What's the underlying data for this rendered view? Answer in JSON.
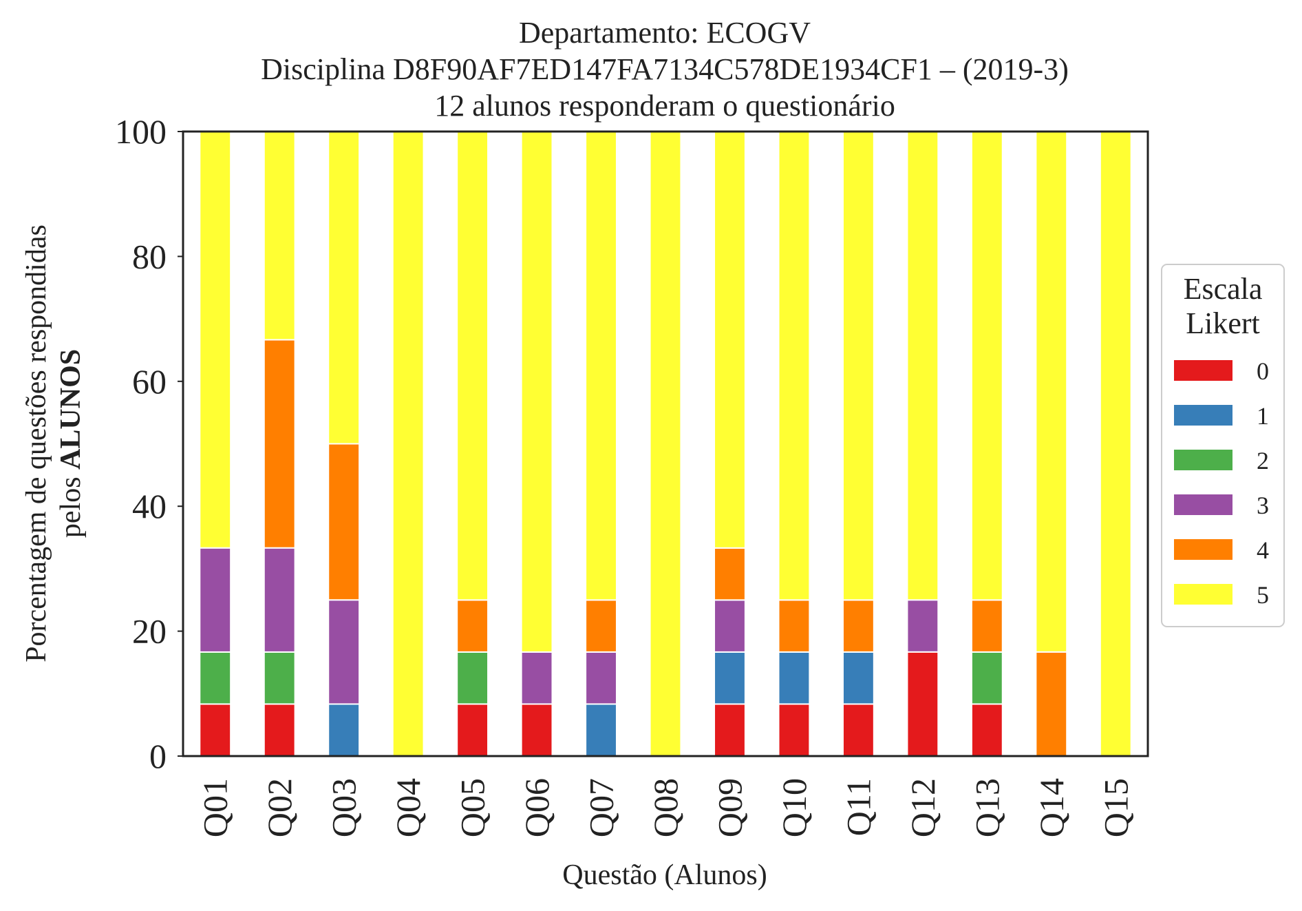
{
  "chart_data": {
    "type": "bar",
    "stacked": true,
    "title_lines": [
      "Departamento: ECOGV",
      "Disciplina D8F90AF7ED147FA7134C578DE1934CF1 – (2019-3)",
      "12 alunos responderam o questionário"
    ],
    "xlabel": "Questão (Alunos)",
    "ylabel_line1": "Porcentagem de questões respondidas",
    "ylabel_line2_prefix": "pelos ",
    "ylabel_line2_bold": "ALUNOS",
    "ylim": [
      0,
      100
    ],
    "yticks": [
      "0",
      "20",
      "40",
      "60",
      "80",
      "100"
    ],
    "grid": false,
    "legend_position": "right",
    "legend_title_lines": [
      "Escala",
      "Likert"
    ],
    "categories": [
      "Q01",
      "Q02",
      "Q03",
      "Q04",
      "Q05",
      "Q06",
      "Q07",
      "Q08",
      "Q09",
      "Q10",
      "Q11",
      "Q12",
      "Q13",
      "Q14",
      "Q15"
    ],
    "series": [
      {
        "name": "0",
        "color": "#e41a1c",
        "values": [
          8.33,
          8.33,
          0,
          0,
          8.33,
          8.33,
          0,
          0,
          8.33,
          8.33,
          8.33,
          16.67,
          8.33,
          0,
          0
        ]
      },
      {
        "name": "1",
        "color": "#377eb8",
        "values": [
          0,
          0,
          8.33,
          0,
          0,
          0,
          8.33,
          0,
          8.33,
          8.33,
          8.33,
          0,
          0,
          0,
          0
        ]
      },
      {
        "name": "2",
        "color": "#4daf4a",
        "values": [
          8.33,
          8.33,
          0,
          0,
          8.33,
          0,
          0,
          0,
          0,
          0,
          0,
          0,
          8.33,
          0,
          0
        ]
      },
      {
        "name": "3",
        "color": "#984ea3",
        "values": [
          16.67,
          16.67,
          16.67,
          0,
          0,
          8.33,
          8.33,
          0,
          8.33,
          0,
          0,
          8.33,
          0,
          0,
          0
        ]
      },
      {
        "name": "4",
        "color": "#ff7f00",
        "values": [
          0,
          33.33,
          25,
          0,
          8.33,
          0,
          8.33,
          0,
          8.33,
          8.33,
          8.33,
          0,
          8.33,
          16.67,
          0
        ]
      },
      {
        "name": "5",
        "color": "#ffff33",
        "values": [
          66.67,
          33.33,
          50,
          100,
          75,
          83.33,
          75,
          100,
          66.67,
          75,
          75,
          75,
          75,
          83.33,
          100
        ]
      }
    ]
  }
}
